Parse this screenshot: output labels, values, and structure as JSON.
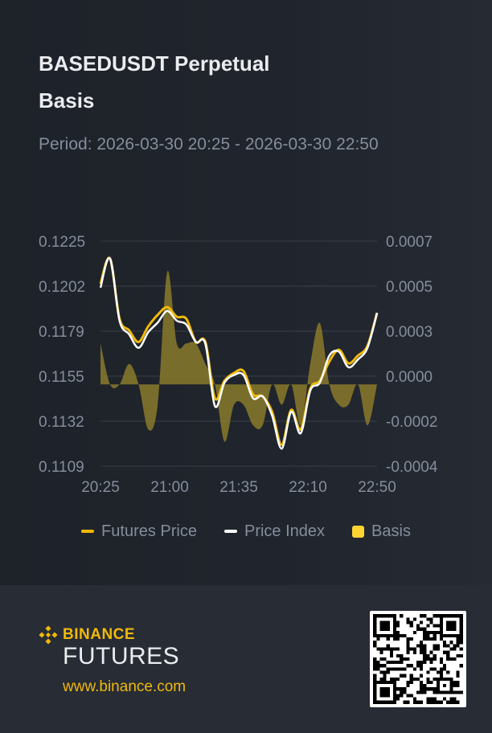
{
  "header": {
    "title_line1": "BASEDUSDT Perpetual",
    "title_line2": "Basis",
    "period": "Period: 2026-03-30 20:25 - 2026-03-30 22:50"
  },
  "legend": {
    "futures": "Futures Price",
    "index": "Price Index",
    "basis": "Basis"
  },
  "colors": {
    "futures": "#f0b90b",
    "index": "#ffffff",
    "basis_fill": "#8a7a2c",
    "grid": "#3a3f48",
    "axis_text": "#848e9c"
  },
  "footer": {
    "brand": "BINANCE",
    "product": "FUTURES",
    "url": "www.binance.com"
  },
  "chart_data": {
    "type": "line",
    "x_ticks": [
      "20:25",
      "21:00",
      "21:35",
      "22:10",
      "22:50"
    ],
    "x_range": [
      0,
      29
    ],
    "y_left_ticks": [
      "0.1225",
      "0.1202",
      "0.1179",
      "0.1155",
      "0.1132",
      "0.1109"
    ],
    "y_left_range": [
      0.1109,
      0.1225
    ],
    "y_right_ticks": [
      "0.0007",
      "0.0005",
      "0.0003",
      "0.0000",
      "-0.0002",
      "-0.0004"
    ],
    "y_right_range": [
      -0.0004,
      0.0007
    ],
    "grid": true,
    "legend_position": "bottom",
    "series": [
      {
        "name": "Futures Price",
        "axis": "left",
        "values": [
          0.1203,
          0.1216,
          0.1185,
          0.1179,
          0.1173,
          0.1181,
          0.1187,
          0.1191,
          0.1186,
          0.1185,
          0.1173,
          0.1173,
          0.1144,
          0.1153,
          0.1157,
          0.1158,
          0.1146,
          0.1145,
          0.1137,
          0.112,
          0.1138,
          0.1128,
          0.1149,
          0.1153,
          0.1163,
          0.1169,
          0.1162,
          0.1166,
          0.1171,
          0.1188
        ]
      },
      {
        "name": "Price Index",
        "axis": "left",
        "values": [
          0.1201,
          0.1216,
          0.1184,
          0.1177,
          0.117,
          0.1178,
          0.1183,
          0.1189,
          0.1184,
          0.1182,
          0.1173,
          0.1172,
          0.114,
          0.1152,
          0.1156,
          0.1156,
          0.1144,
          0.1145,
          0.1135,
          0.1118,
          0.1137,
          0.1126,
          0.1148,
          0.1152,
          0.1166,
          0.1168,
          0.116,
          0.1164,
          0.117,
          0.1188
        ]
      },
      {
        "name": "Basis",
        "axis": "right",
        "values": [
          0.0002,
          0.0,
          0.0,
          0.0001,
          0.0,
          -0.00022,
          -0.0001,
          0.00055,
          0.0002,
          0.0002,
          0.0002,
          0.0001,
          0.0,
          -0.00028,
          -0.0001,
          -0.0001,
          -0.0002,
          -0.0002,
          0.0,
          -0.0001,
          0.0,
          -0.0002,
          0.0001,
          0.0003,
          0.0,
          -0.0001,
          -0.0001,
          0.0,
          -0.0002,
          0.0
        ]
      }
    ]
  }
}
